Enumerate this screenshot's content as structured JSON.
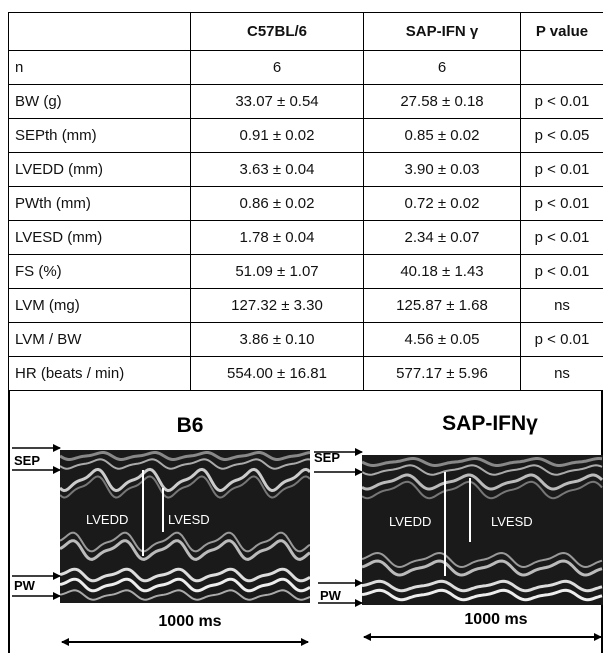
{
  "table": {
    "header": [
      "C57BL/6",
      "SAP-IFN γ",
      "P value"
    ],
    "rows": [
      [
        "n",
        "6",
        "6"
      ],
      [
        "BW (g)",
        "33.07 ± 0.54",
        "27.58 ± 0.18",
        "p < 0.01"
      ],
      [
        "SEPth (mm)",
        "0.91 ± 0.02",
        "0.85 ± 0.02",
        "p < 0.05"
      ],
      [
        "LVEDD (mm)",
        "3.63 ± 0.04",
        "3.90 ± 0.03",
        "p < 0.01"
      ],
      [
        "PWth (mm)",
        "0.86 ± 0.02",
        "0.72 ± 0.02",
        "p < 0.01"
      ],
      [
        "LVESD (mm)",
        "1.78 ± 0.04",
        "2.34 ± 0.07",
        "p < 0.01"
      ],
      [
        "FS (%)",
        "51.09 ± 1.07",
        "40.18 ± 1.43",
        "p < 0.01"
      ],
      [
        "LVM (mg)",
        "127.32 ± 3.30",
        "125.87 ± 1.68",
        "ns"
      ],
      [
        "LVM / BW",
        "3.86 ± 0.10",
        "4.56 ± 0.05",
        "p < 0.01"
      ],
      [
        "HR (beats / min)",
        "554.00 ± 16.81",
        "577.17 ± 5.96",
        "ns"
      ]
    ]
  },
  "panels": [
    {
      "title": "B6",
      "sep": "SEP",
      "pw": "PW",
      "lvedd": "LVEDD",
      "lvesd": "LVESD",
      "scale": "1000 ms"
    },
    {
      "title": "SAP-IFNγ",
      "sep": "SEP",
      "pw": "PW",
      "lvedd": "LVEDD",
      "lvesd": "LVESD",
      "scale": "1000 ms"
    }
  ]
}
